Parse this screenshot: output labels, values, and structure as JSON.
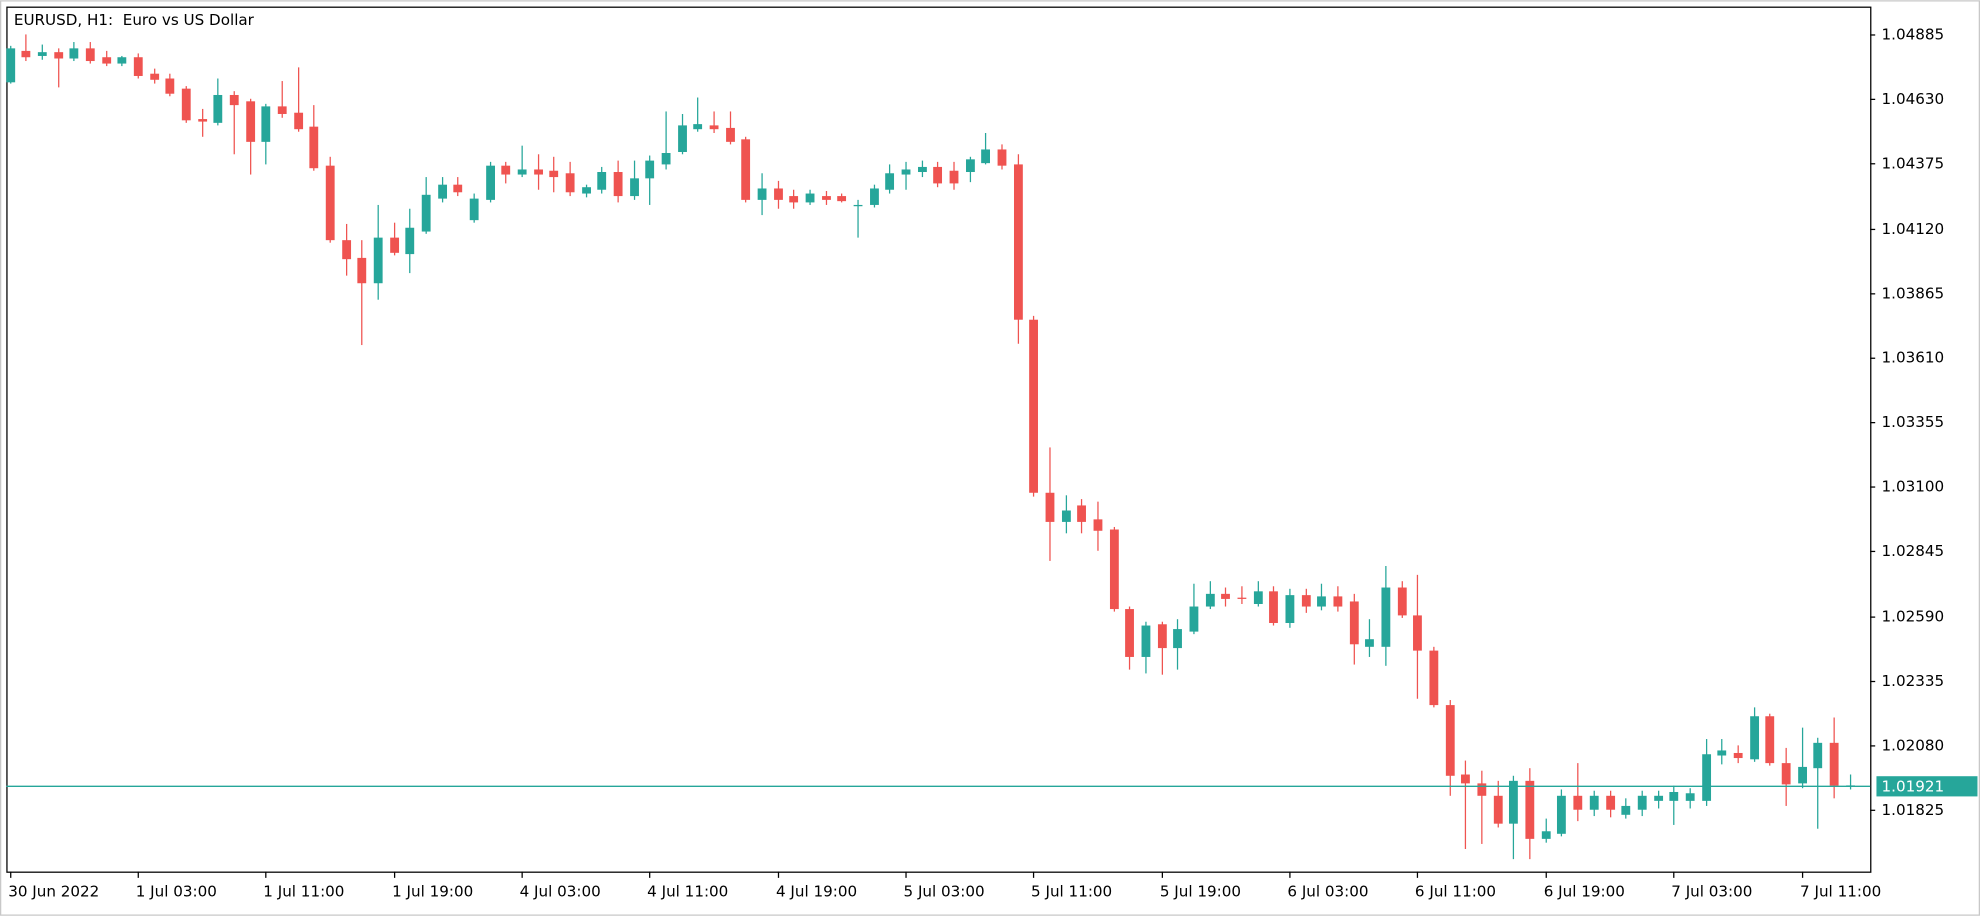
{
  "chart_data": {
    "type": "candlestick",
    "title": "EURUSD, H1:  Euro vs US Dollar",
    "categories": [
      "30 Jun 2022",
      null,
      null,
      null,
      null,
      null,
      null,
      null,
      "1 Jul 03:00",
      null,
      null,
      null,
      null,
      null,
      null,
      null,
      "1 Jul 11:00",
      null,
      null,
      null,
      null,
      null,
      null,
      null,
      "1 Jul 19:00",
      null,
      null,
      null,
      null,
      null,
      null,
      null,
      "4 Jul 03:00",
      null,
      null,
      null,
      null,
      null,
      null,
      null,
      "4 Jul 11:00",
      null,
      null,
      null,
      null,
      null,
      null,
      null,
      "4 Jul 19:00",
      null,
      null,
      null,
      null,
      null,
      null,
      null,
      "5 Jul 03:00",
      null,
      null,
      null,
      null,
      null,
      null,
      null,
      "5 Jul 11:00",
      null,
      null,
      null,
      null,
      null,
      null,
      null,
      "5 Jul 19:00",
      null,
      null,
      null,
      null,
      null,
      null,
      null,
      "6 Jul 03:00",
      null,
      null,
      null,
      null,
      null,
      null,
      null,
      "6 Jul 11:00",
      null,
      null,
      null,
      null,
      null,
      null,
      null,
      "6 Jul 19:00",
      null,
      null,
      null,
      null,
      null,
      null,
      null,
      "7 Jul 03:00",
      null,
      null,
      null,
      null,
      null,
      null,
      null,
      "7 Jul 11:00",
      null,
      null,
      null
    ],
    "open": [
      1.04696,
      1.0482,
      1.048,
      1.04815,
      1.0479,
      1.0483,
      1.04795,
      1.0477,
      1.04795,
      1.0473,
      1.04711,
      1.04671,
      1.04551,
      1.04536,
      1.04646,
      1.04621,
      1.04461,
      1.04601,
      1.04576,
      1.04521,
      1.04367,
      1.04073,
      1.04003,
      1.03903,
      1.04083,
      1.04018,
      1.04107,
      1.04237,
      1.04292,
      1.04152,
      1.04232,
      1.04367,
      1.04332,
      1.04352,
      1.04347,
      1.04337,
      1.04257,
      1.04272,
      1.04342,
      1.04247,
      1.04317,
      1.04372,
      1.04421,
      1.04511,
      1.04526,
      1.04516,
      1.04471,
      1.04232,
      1.04277,
      1.04247,
      1.04222,
      1.04247,
      1.04247,
      1.04207,
      1.04212,
      1.04272,
      1.04332,
      1.04342,
      1.04362,
      1.04347,
      1.04342,
      1.04377,
      1.04431,
      1.04372,
      1.03759,
      1.03076,
      1.02961,
      1.03026,
      1.02971,
      1.02931,
      1.02617,
      1.02428,
      1.02557,
      1.02463,
      1.02528,
      1.02627,
      1.02677,
      1.02662,
      1.02637,
      1.02687,
      1.02562,
      1.02672,
      1.02627,
      1.02667,
      1.02647,
      1.02468,
      1.02468,
      1.02702,
      1.02592,
      1.02453,
      1.02238,
      1.01964,
      1.01929,
      1.0188,
      1.0177,
      1.01939,
      1.0171,
      1.0173,
      1.0188,
      1.01825,
      1.0188,
      1.01805,
      1.01825,
      1.0186,
      1.0186,
      1.0186,
      1.0186,
      1.02039,
      1.02049,
      1.02024,
      1.02194,
      1.02009,
      1.01929,
      1.01989,
      1.02089,
      1.0192
    ],
    "high": [
      1.0484,
      1.04885,
      1.04845,
      1.0483,
      1.04855,
      1.04855,
      1.0482,
      1.048,
      1.0481,
      1.0475,
      1.0473,
      1.04681,
      1.04591,
      1.04711,
      1.04661,
      1.04631,
      1.04611,
      1.04701,
      1.04755,
      1.04606,
      1.04402,
      1.04137,
      1.04073,
      1.04212,
      1.04142,
      1.04197,
      1.04322,
      1.04322,
      1.04322,
      1.04257,
      1.04382,
      1.04382,
      1.04446,
      1.04412,
      1.04402,
      1.04382,
      1.04292,
      1.04362,
      1.04387,
      1.04387,
      1.04407,
      1.04581,
      1.04571,
      1.04636,
      1.04581,
      1.04581,
      1.04481,
      1.04337,
      1.04307,
      1.04272,
      1.04272,
      1.04267,
      1.04257,
      1.04232,
      1.04292,
      1.04372,
      1.04382,
      1.04387,
      1.04382,
      1.04382,
      1.04402,
      1.04496,
      1.04451,
      1.04412,
      1.03774,
      1.03255,
      1.03066,
      1.03051,
      1.03041,
      1.02941,
      1.02627,
      1.02567,
      1.02567,
      1.02577,
      1.02717,
      1.02727,
      1.02702,
      1.02707,
      1.02727,
      1.02707,
      1.02697,
      1.02697,
      1.02717,
      1.02707,
      1.02677,
      1.02577,
      1.02787,
      1.02727,
      1.02752,
      1.02468,
      1.02258,
      1.02019,
      1.01979,
      1.01939,
      1.01959,
      1.01989,
      1.0179,
      1.01905,
      1.02009,
      1.019,
      1.019,
      1.0187,
      1.019,
      1.019,
      1.0192,
      1.0191,
      1.02104,
      1.02104,
      1.02079,
      1.02229,
      1.02204,
      1.02069,
      1.02149,
      1.02109,
      1.02189,
      1.01964
    ],
    "low": [
      1.04691,
      1.0478,
      1.04785,
      1.04676,
      1.0478,
      1.0477,
      1.0476,
      1.0476,
      1.04711,
      1.04691,
      1.04641,
      1.04536,
      1.04481,
      1.04526,
      1.04412,
      1.04332,
      1.04372,
      1.04556,
      1.04501,
      1.04347,
      1.04063,
      1.03933,
      1.03659,
      1.03838,
      1.04013,
      1.03943,
      1.04098,
      1.04222,
      1.04247,
      1.04142,
      1.04222,
      1.04297,
      1.04322,
      1.04272,
      1.04262,
      1.04247,
      1.04242,
      1.04257,
      1.04222,
      1.04232,
      1.04212,
      1.04352,
      1.04412,
      1.04501,
      1.04496,
      1.04451,
      1.04222,
      1.04172,
      1.04197,
      1.04197,
      1.04212,
      1.04212,
      1.04222,
      1.04083,
      1.04202,
      1.04257,
      1.04272,
      1.04322,
      1.04282,
      1.04272,
      1.04302,
      1.04372,
      1.04352,
      1.03664,
      1.03061,
      1.02807,
      1.02916,
      1.02916,
      1.02847,
      1.02607,
      1.02378,
      1.02363,
      1.02358,
      1.02378,
      1.02518,
      1.02617,
      1.02627,
      1.02637,
      1.02627,
      1.02552,
      1.02543,
      1.02602,
      1.02612,
      1.02607,
      1.02398,
      1.02428,
      1.02393,
      1.02582,
      1.02263,
      1.02229,
      1.0188,
      1.0167,
      1.0169,
      1.01755,
      1.0163,
      1.0163,
      1.01695,
      1.0172,
      1.0178,
      1.018,
      1.01795,
      1.0179,
      1.018,
      1.0183,
      1.01765,
      1.0183,
      1.0184,
      1.02004,
      1.02009,
      1.02014,
      1.01999,
      1.0184,
      1.0191,
      1.0175,
      1.0187,
      1.01905
    ],
    "close": [
      1.0483,
      1.04795,
      1.04815,
      1.0479,
      1.0483,
      1.0478,
      1.0477,
      1.04795,
      1.04721,
      1.04706,
      1.04651,
      1.04546,
      1.04541,
      1.04646,
      1.04606,
      1.04461,
      1.04601,
      1.04571,
      1.04511,
      1.04357,
      1.04073,
      1.03998,
      1.03903,
      1.04083,
      1.04023,
      1.04122,
      1.04252,
      1.04292,
      1.04262,
      1.04237,
      1.04367,
      1.04332,
      1.04352,
      1.04332,
      1.04322,
      1.04262,
      1.04282,
      1.04342,
      1.04247,
      1.04317,
      1.04387,
      1.04417,
      1.04526,
      1.04531,
      1.04511,
      1.04461,
      1.04232,
      1.04277,
      1.04232,
      1.04222,
      1.04257,
      1.04232,
      1.04227,
      1.04212,
      1.04277,
      1.04337,
      1.04352,
      1.04362,
      1.04297,
      1.04297,
      1.04392,
      1.04431,
      1.04367,
      1.03759,
      1.03076,
      1.02961,
      1.03006,
      1.02961,
      1.02926,
      1.02617,
      1.02428,
      1.02552,
      1.02463,
      1.02538,
      1.02627,
      1.02677,
      1.02657,
      1.02657,
      1.02687,
      1.02562,
      1.02672,
      1.02627,
      1.02667,
      1.02627,
      1.02478,
      1.02498,
      1.02702,
      1.02592,
      1.02453,
      1.02238,
      1.01959,
      1.01929,
      1.0188,
      1.0177,
      1.01939,
      1.0171,
      1.0174,
      1.0188,
      1.01825,
      1.0188,
      1.01825,
      1.0184,
      1.0188,
      1.0188,
      1.01895,
      1.0189,
      1.02044,
      1.02059,
      1.02029,
      1.02194,
      1.02009,
      1.01925,
      1.01994,
      1.02089,
      1.0192,
      1.01921
    ],
    "up_color": "#26a69a",
    "down_color": "#ef5350",
    "ylim": [
      1.01581,
      1.04985
    ],
    "yticks": [
      1.04885,
      {
        "value": 1.0463,
        "label": "1.04630"
      },
      1.04375,
      {
        "value": 1.0412,
        "label": "1.04120"
      },
      1.03865,
      {
        "value": 1.0361,
        "label": "1.03610"
      },
      1.03355,
      {
        "value": 1.031,
        "label": "1.03100"
      },
      1.02845,
      {
        "value": 1.0259,
        "label": "1.02590"
      },
      1.02335,
      {
        "value": 1.0208,
        "label": "1.02080"
      },
      1.01825
    ],
    "last_price": 1.01921,
    "last_price_color": "#26a69a"
  }
}
